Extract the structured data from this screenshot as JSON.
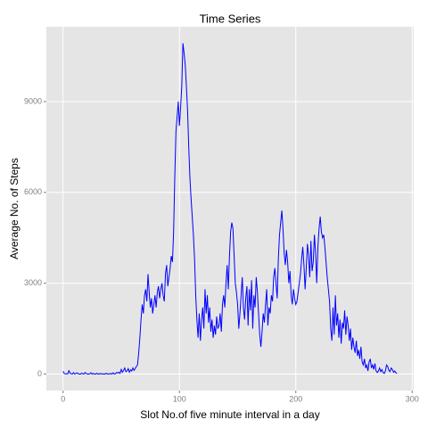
{
  "chart_data": {
    "type": "line",
    "title": "Time Series",
    "x_label": "Slot No.of five minute interval in a day",
    "y_label": "Average No. of Steps",
    "xlim": [
      -14.35,
      301.35
    ],
    "ylim": [
      -546,
      11473
    ],
    "xticks": [
      0,
      100,
      200,
      300
    ],
    "yticks": [
      0,
      3000,
      6000,
      9000
    ],
    "grid": true,
    "x": [
      0,
      1,
      2,
      3,
      4,
      5,
      6,
      7,
      8,
      9,
      10,
      11,
      12,
      13,
      14,
      15,
      16,
      17,
      18,
      19,
      20,
      21,
      22,
      23,
      24,
      25,
      26,
      27,
      28,
      29,
      30,
      31,
      32,
      33,
      34,
      35,
      36,
      37,
      38,
      39,
      40,
      41,
      42,
      43,
      44,
      45,
      46,
      47,
      48,
      49,
      50,
      51,
      52,
      53,
      54,
      55,
      56,
      57,
      58,
      59,
      60,
      61,
      62,
      63,
      64,
      65,
      66,
      67,
      68,
      69,
      70,
      71,
      72,
      73,
      74,
      75,
      76,
      77,
      78,
      79,
      80,
      81,
      82,
      83,
      84,
      85,
      86,
      87,
      88,
      89,
      90,
      91,
      92,
      93,
      94,
      95,
      96,
      97,
      98,
      99,
      100,
      101,
      102,
      103,
      104,
      105,
      106,
      107,
      108,
      109,
      110,
      111,
      112,
      113,
      114,
      115,
      116,
      117,
      118,
      119,
      120,
      121,
      122,
      123,
      124,
      125,
      126,
      127,
      128,
      129,
      130,
      131,
      132,
      133,
      134,
      135,
      136,
      137,
      138,
      139,
      140,
      141,
      142,
      143,
      144,
      145,
      146,
      147,
      148,
      149,
      150,
      151,
      152,
      153,
      154,
      155,
      156,
      157,
      158,
      159,
      160,
      161,
      162,
      163,
      164,
      165,
      166,
      167,
      168,
      169,
      170,
      171,
      172,
      173,
      174,
      175,
      176,
      177,
      178,
      179,
      180,
      181,
      182,
      183,
      184,
      185,
      186,
      187,
      188,
      189,
      190,
      191,
      192,
      193,
      194,
      195,
      196,
      197,
      198,
      199,
      200,
      201,
      202,
      203,
      204,
      205,
      206,
      207,
      208,
      209,
      210,
      211,
      212,
      213,
      214,
      215,
      216,
      217,
      218,
      219,
      220,
      221,
      222,
      223,
      224,
      225,
      226,
      227,
      228,
      229,
      230,
      231,
      232,
      233,
      234,
      235,
      236,
      237,
      238,
      239,
      240,
      241,
      242,
      243,
      244,
      245,
      246,
      247,
      248,
      249,
      250,
      251,
      252,
      253,
      254,
      255,
      256,
      257,
      258,
      259,
      260,
      261,
      262,
      263,
      264,
      265,
      266,
      267,
      268,
      269,
      270,
      271,
      272,
      273,
      274,
      275,
      276,
      277,
      278,
      279,
      280,
      281,
      282,
      283,
      284,
      285,
      286,
      287
    ],
    "series": [
      {
        "name": "steps",
        "color": "#0000FF",
        "values": [
          91,
          18,
          7,
          8,
          4,
          111,
          28,
          11,
          0,
          47,
          0,
          20,
          40,
          10,
          0,
          0,
          30,
          10,
          0,
          50,
          15,
          0,
          0,
          10,
          40,
          0,
          20,
          0,
          0,
          30,
          0,
          0,
          20,
          0,
          10,
          0,
          0,
          30,
          0,
          10,
          0,
          20,
          0,
          40,
          0,
          10,
          50,
          30,
          60,
          20,
          150,
          60,
          120,
          200,
          80,
          100,
          180,
          60,
          140,
          100,
          200,
          120,
          180,
          250,
          300,
          700,
          1200,
          1800,
          2300,
          2000,
          2600,
          2800,
          2400,
          3300,
          2700,
          2200,
          2500,
          2000,
          2300,
          2600,
          2200,
          2700,
          2900,
          2500,
          2800,
          3000,
          2600,
          2400,
          3300,
          3600,
          2900,
          3200,
          3500,
          3900,
          3700,
          4700,
          6500,
          8000,
          8500,
          9000,
          8200,
          8800,
          9500,
          10927,
          10600,
          10200,
          9500,
          8700,
          7500,
          6500,
          5800,
          5200,
          4600,
          3800,
          2600,
          1800,
          1200,
          2000,
          1100,
          1800,
          2200,
          1500,
          2800,
          2000,
          2600,
          1700,
          2200,
          1400,
          1800,
          1200,
          1600,
          1300,
          1900,
          1500,
          1600,
          2000,
          1400,
          2300,
          2600,
          2200,
          3000,
          3600,
          2800,
          3900,
          4700,
          5000,
          4800,
          3900,
          3000,
          2700,
          2300,
          1500,
          2000,
          2600,
          3200,
          2200,
          1800,
          2500,
          2900,
          1600,
          2800,
          2100,
          3100,
          1500,
          2600,
          2200,
          3200,
          2700,
          2000,
          1300,
          900,
          1400,
          2000,
          1700,
          2300,
          2800,
          1600,
          2200,
          2000,
          2600,
          2400,
          3200,
          3500,
          3000,
          2500,
          3800,
          4600,
          5000,
          5400,
          4800,
          4000,
          3600,
          4100,
          3700,
          3000,
          3400,
          2600,
          2300,
          2800,
          2500,
          2300,
          2400,
          2700,
          3000,
          3300,
          3800,
          4200,
          3600,
          2800,
          3500,
          4300,
          3900,
          3200,
          4400,
          3400,
          3700,
          4600,
          4000,
          3000,
          4200,
          4800,
          5200,
          4700,
          4500,
          4600,
          4200,
          3700,
          3200,
          2800,
          2400,
          1500,
          1100,
          2200,
          1300,
          2600,
          1600,
          2000,
          1200,
          1800,
          1000,
          1700,
          1500,
          2100,
          1300,
          1900,
          1600,
          1100,
          1500,
          800,
          1200,
          900,
          700,
          1100,
          600,
          800,
          500,
          900,
          400,
          300,
          500,
          200,
          300,
          100,
          400,
          500,
          200,
          300,
          150,
          350,
          100,
          50,
          100,
          200,
          80,
          150,
          50,
          20,
          100,
          300,
          250,
          120,
          80,
          200,
          150,
          60,
          100,
          40,
          20
        ]
      }
    ]
  }
}
